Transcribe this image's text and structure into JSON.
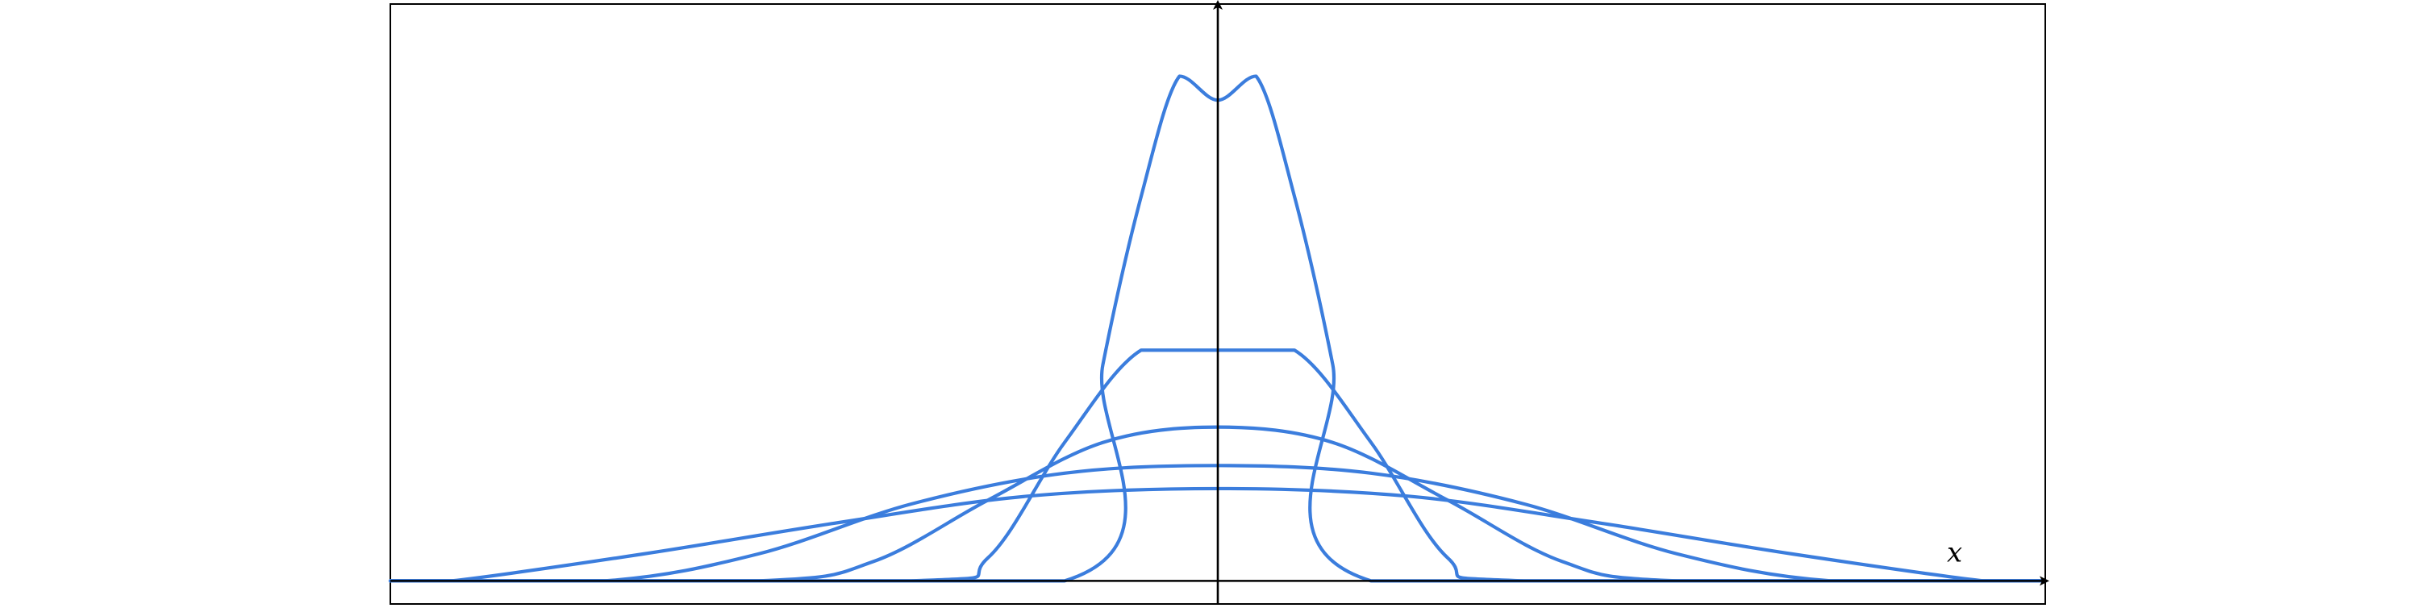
{
  "chart_data": {
    "type": "line",
    "title": "",
    "xlabel": "x",
    "ylabel": "",
    "xlim": [
      -5.4,
      5.4
    ],
    "ylim": [
      -0.12,
      3.0
    ],
    "grid": false,
    "legend": "none",
    "color": "#3b7ddd",
    "axis_color": "#000000",
    "series": [
      {
        "x": [
          -5.4,
          -1.0,
          -0.75,
          -0.5,
          -0.25,
          0.0,
          0.25,
          0.5,
          0.75,
          1.0,
          5.4
        ],
        "values": [
          0.0,
          0.0,
          1.125,
          2.0,
          2.625,
          2.5,
          2.625,
          2.0,
          1.125,
          0.0,
          0.0
        ]
      },
      {
        "x": [
          -5.4,
          -2.0,
          -1.5,
          -1.0,
          -0.5,
          0.0,
          0.5,
          1.0,
          1.5,
          2.0,
          5.4
        ],
        "values": [
          0.0,
          0.0,
          0.12,
          0.72,
          1.2,
          1.2,
          1.2,
          0.72,
          0.12,
          0.0,
          0.0
        ]
      },
      {
        "x": [
          -5.4,
          -3.0,
          -2.25,
          -1.5,
          -0.75,
          0.0,
          0.75,
          1.5,
          2.25,
          3.0,
          5.4
        ],
        "values": [
          0.0,
          0.0,
          0.1,
          0.42,
          0.72,
          0.8,
          0.72,
          0.42,
          0.1,
          0.0,
          0.0
        ]
      },
      {
        "x": [
          -5.4,
          -4.0,
          -3.0,
          -2.0,
          -1.0,
          0.0,
          1.0,
          2.0,
          3.0,
          4.0,
          5.4
        ],
        "values": [
          0.0,
          0.0,
          0.14,
          0.4,
          0.56,
          0.6,
          0.56,
          0.4,
          0.14,
          0.0,
          0.0
        ]
      },
      {
        "x": [
          -5.4,
          -5.0,
          -3.75,
          -2.5,
          -1.25,
          0.0,
          1.25,
          2.5,
          3.75,
          5.0,
          5.4
        ],
        "values": [
          0.0,
          0.0,
          0.14,
          0.3,
          0.44,
          0.48,
          0.44,
          0.3,
          0.14,
          0.0,
          0.0
        ]
      }
    ]
  }
}
